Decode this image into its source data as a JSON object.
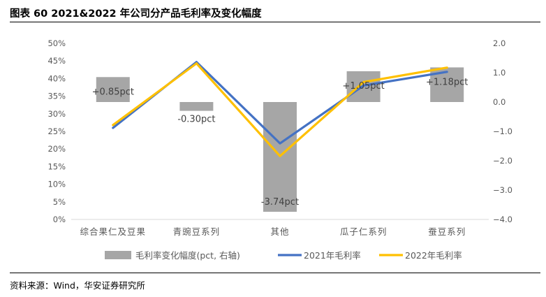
{
  "page": {
    "title": "图表 60 2021&2022 年公司分产品毛利率及变化幅度",
    "source": "资料来源：Wind，华安证券研究所"
  },
  "chart_data": {
    "type": "bar+line",
    "categories": [
      "综合果仁及豆果",
      "青豌豆系列",
      "其他",
      "瓜子仁系列",
      "蚕豆系列"
    ],
    "y_left": {
      "min": 0,
      "max": 50,
      "step": 5,
      "ticks": [
        "0%",
        "5%",
        "10%",
        "15%",
        "20%",
        "25%",
        "30%",
        "35%",
        "40%",
        "45%",
        "50%"
      ]
    },
    "y_right": {
      "min": -4,
      "max": 2,
      "step": 1,
      "ticks": [
        "−4.0",
        "−3.0",
        "−2.0",
        "−1.0",
        "0.0",
        "1.0",
        "2.0"
      ]
    },
    "series": [
      {
        "name": "毛利率变化幅度(pct, 右轴)",
        "type": "bar",
        "axis": "right",
        "color": "#A6A6A6",
        "values": [
          0.85,
          -0.3,
          -3.74,
          1.05,
          1.18
        ],
        "labels": [
          "+0.85pct",
          "-0.30pct",
          "-3.74pct",
          "+1.05pct",
          "+1.18pct"
        ]
      },
      {
        "name": "2021年毛利率",
        "type": "line",
        "axis": "left",
        "color": "#4472C4",
        "values": [
          26.0,
          44.7,
          21.6,
          38.0,
          41.9
        ]
      },
      {
        "name": "2022年毛利率",
        "type": "line",
        "axis": "left",
        "color": "#FFC000",
        "values": [
          26.8,
          44.3,
          18.0,
          39.0,
          43.1
        ]
      }
    ],
    "legend_position": "bottom",
    "grid": false
  }
}
